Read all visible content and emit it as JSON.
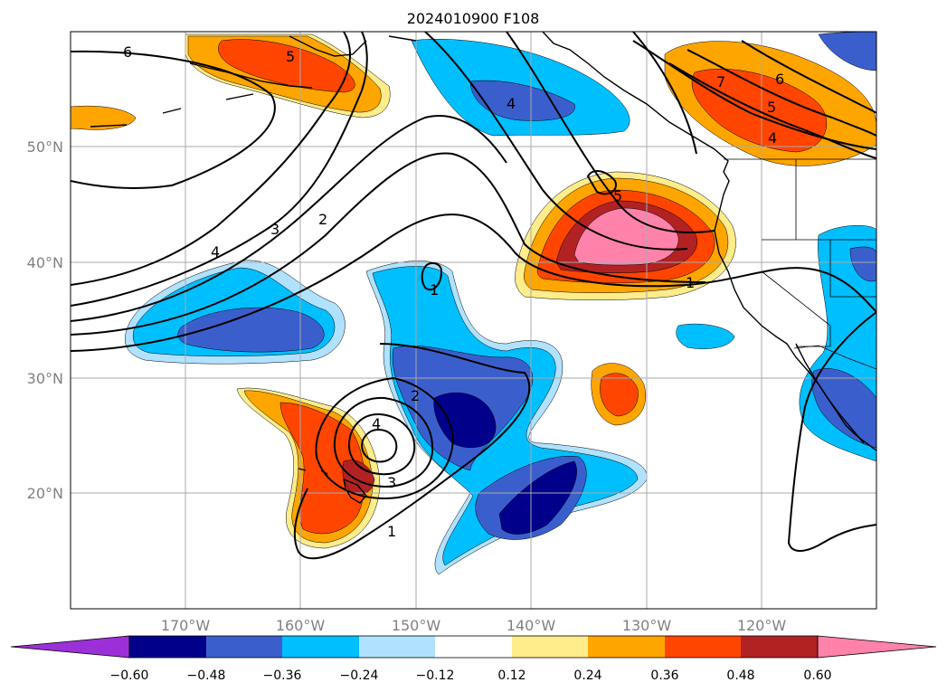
{
  "title": "2024010900 F108",
  "axes": {
    "lon_ticks": [
      "170°W",
      "160°W",
      "150°W",
      "140°W",
      "130°W",
      "120°W"
    ],
    "lat_ticks": [
      "50°N",
      "40°N",
      "30°N",
      "20°N"
    ]
  },
  "colorbar": {
    "extend": "both",
    "ticks": [
      "−0.60",
      "−0.48",
      "−0.36",
      "−0.24",
      "−0.12",
      "0.12",
      "0.24",
      "0.36",
      "0.48",
      "0.60"
    ],
    "colors": {
      "under": "#9b30d9",
      "c1": "#00008b",
      "c2": "#3a5fcd",
      "c3": "#00bfff",
      "c4": "#b0e2ff",
      "c5": "#ffffff",
      "c6": "#ffec8b",
      "c7": "#ffa500",
      "c8": "#ff4500",
      "c9": "#b22222",
      "over": "#ff82ab"
    }
  },
  "contour_labels": [
    "6",
    "5",
    "4",
    "3",
    "2",
    "4",
    "1",
    "5",
    "1",
    "7",
    "6",
    "5",
    "4",
    "2",
    "4",
    "3",
    "1"
  ]
}
